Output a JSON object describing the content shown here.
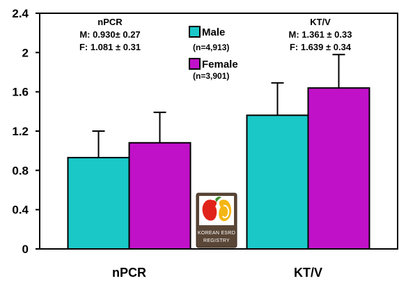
{
  "chart_data": {
    "type": "bar",
    "categories": [
      "nPCR",
      "KT/V"
    ],
    "series": [
      {
        "name": "Male",
        "sub": "(n=4,913)",
        "color": "#1ac8c8",
        "values": [
          0.93,
          1.361
        ],
        "errors": [
          0.27,
          0.33
        ]
      },
      {
        "name": "Female",
        "sub": "(n=3,901)",
        "color": "#c011c8",
        "values": [
          1.081,
          1.639
        ],
        "errors": [
          0.31,
          0.34
        ]
      }
    ],
    "ylim": [
      0,
      2.4
    ],
    "yticks": [
      "0",
      "0.4",
      "0.8",
      "1.2",
      "1.6",
      "2",
      "2.4"
    ],
    "grid": false,
    "legend_position": "top-center",
    "annotations": [
      {
        "title": "nPCR",
        "male_line": "M: 0.930± 0.27",
        "female_line": "F: 1.081 ± 0.31"
      },
      {
        "title": "KT/V",
        "male_line": "M: 1.361 ± 0.33",
        "female_line": "F: 1.639 ± 0.34"
      }
    ]
  },
  "logo": {
    "line1": "KOREAN ESRD",
    "line2": "REGISTRY"
  }
}
